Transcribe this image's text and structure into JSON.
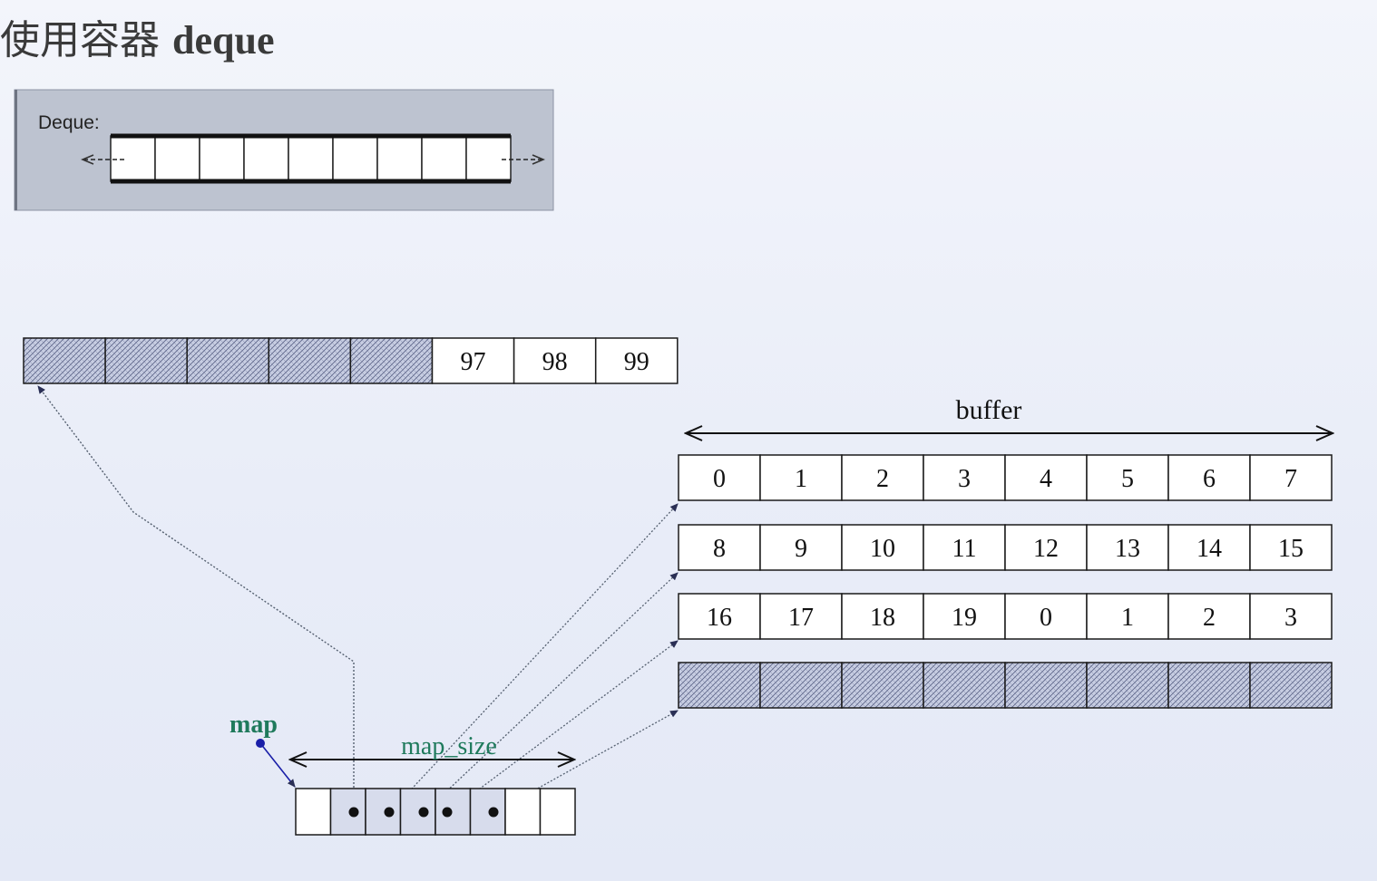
{
  "slide": {
    "title_cn": "使用容器",
    "title_latin": "deque"
  },
  "deque_panel": {
    "label": "Deque:"
  },
  "top_buffer": {
    "values": [
      "97",
      "98",
      "99"
    ]
  },
  "buffer_label": "buffer",
  "buffer_rows": [
    [
      "0",
      "1",
      "2",
      "3",
      "4",
      "5",
      "6",
      "7"
    ],
    [
      "8",
      "9",
      "10",
      "11",
      "12",
      "13",
      "14",
      "15"
    ],
    [
      "16",
      "17",
      "18",
      "19",
      "0",
      "1",
      "2",
      "3"
    ]
  ],
  "map": {
    "label": "map",
    "size_label": "map_size"
  },
  "colors": {
    "background": "#eef1f9",
    "panel": "#bdc3d0",
    "hatch_fill": "#c7cde2",
    "cell_stroke": "#1a1a1a",
    "map_label": "#1f7a5c",
    "map_dot": "#1a1fa8",
    "pointer_line": "#556070"
  }
}
